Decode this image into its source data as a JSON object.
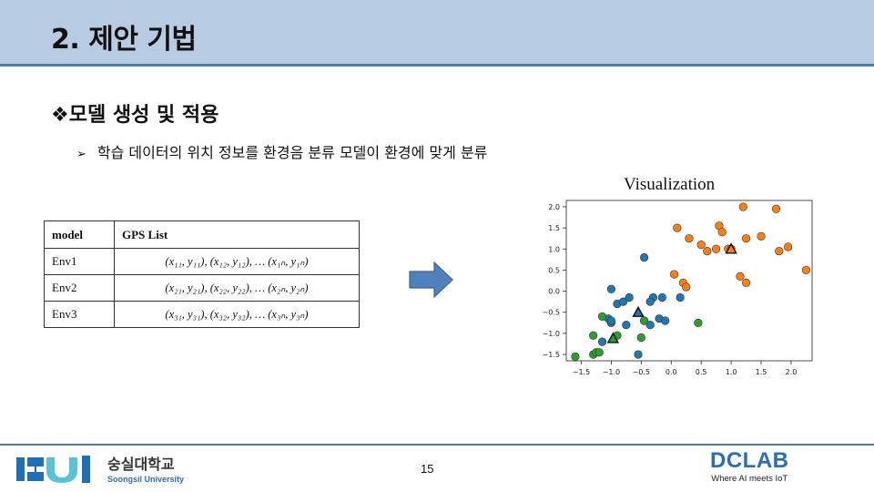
{
  "slide": {
    "title": "2. 제안 기법",
    "section": "❖모델 생성 및 적용",
    "bullet_marker": "➢",
    "bullet": "학습 데이터의 위치 정보를 환경음 분류 모델이 환경에 맞게 분류",
    "page_number": "15"
  },
  "table": {
    "headers": [
      "model",
      "GPS List"
    ],
    "rows": [
      {
        "model": "Env1",
        "gps": "(x₁₁, y₁₁), (x₁₂, y₁₂), … (x₁ₙ, y₁ₙ)"
      },
      {
        "model": "Env2",
        "gps": "(x₂₁, y₂₁), (x₂₂, y₂₂), … (x₂ₙ, y₂ₙ)"
      },
      {
        "model": "Env3",
        "gps": "(x₃₁, y₃₁), (x₃₂, y₃₂), … (x₃ₙ, y₃ₙ)"
      }
    ]
  },
  "logos": {
    "left_korean": "숭실대학교",
    "left_english": "Soongsil University",
    "right_main": "DCLAB",
    "right_tagline": "Where AI meets IoT"
  },
  "chart_data": {
    "type": "scatter",
    "title": "Visualization",
    "xlim": [
      -1.75,
      2.35
    ],
    "ylim": [
      -1.65,
      2.15
    ],
    "xticks": [
      -1.5,
      -1.0,
      -0.5,
      0.0,
      0.5,
      1.0,
      1.5,
      2.0
    ],
    "yticks": [
      -1.5,
      -1.0,
      -0.5,
      0.0,
      0.5,
      1.0,
      1.5,
      2.0
    ],
    "grid": false,
    "series": [
      {
        "color": "#1f77b4",
        "points": [
          [
            -1.0,
            0.05
          ],
          [
            -0.45,
            0.8
          ],
          [
            -1.15,
            -1.2
          ],
          [
            -1.05,
            -0.65
          ],
          [
            -0.9,
            -0.3
          ],
          [
            -0.8,
            -0.25
          ],
          [
            -0.7,
            -0.15
          ],
          [
            -0.75,
            -0.8
          ],
          [
            -1.0,
            -0.75
          ],
          [
            -0.3,
            -0.15
          ],
          [
            -0.35,
            -0.25
          ],
          [
            -0.15,
            -0.15
          ],
          [
            -0.2,
            -0.65
          ],
          [
            -0.1,
            -0.7
          ],
          [
            0.15,
            -0.15
          ],
          [
            -0.55,
            -1.5
          ],
          [
            -0.45,
            -0.7
          ],
          [
            -0.35,
            -0.8
          ],
          [
            -1.0,
            -0.7
          ]
        ]
      },
      {
        "color": "#ff7f0e",
        "points": [
          [
            0.1,
            1.5
          ],
          [
            0.3,
            1.25
          ],
          [
            0.5,
            1.1
          ],
          [
            0.6,
            0.95
          ],
          [
            0.75,
            1.0
          ],
          [
            0.8,
            1.55
          ],
          [
            0.85,
            1.4
          ],
          [
            0.95,
            1.0
          ],
          [
            1.0,
            1.0
          ],
          [
            1.25,
            1.25
          ],
          [
            1.2,
            2.0
          ],
          [
            1.75,
            1.95
          ],
          [
            1.5,
            1.3
          ],
          [
            1.8,
            0.95
          ],
          [
            1.95,
            1.05
          ],
          [
            2.25,
            0.5
          ],
          [
            1.15,
            0.35
          ],
          [
            1.25,
            0.2
          ],
          [
            0.05,
            0.4
          ],
          [
            0.2,
            0.2
          ],
          [
            0.25,
            0.1
          ]
        ]
      },
      {
        "color": "#2ca02c",
        "points": [
          [
            -1.6,
            -1.55
          ],
          [
            -1.3,
            -1.5
          ],
          [
            -1.25,
            -1.45
          ],
          [
            -1.3,
            -1.05
          ],
          [
            -1.15,
            -0.6
          ],
          [
            -1.2,
            -1.45
          ],
          [
            -0.9,
            -1.05
          ],
          [
            -0.5,
            -1.1
          ],
          [
            -0.45,
            -0.7
          ],
          [
            0.45,
            -0.75
          ]
        ]
      }
    ],
    "centroids": [
      {
        "x": -0.55,
        "y": -0.5,
        "color": "#1f77b4"
      },
      {
        "x": 1.0,
        "y": 1.0,
        "color": "#ff7f0e"
      },
      {
        "x": -0.97,
        "y": -1.12,
        "color": "#2ca02c"
      }
    ]
  }
}
